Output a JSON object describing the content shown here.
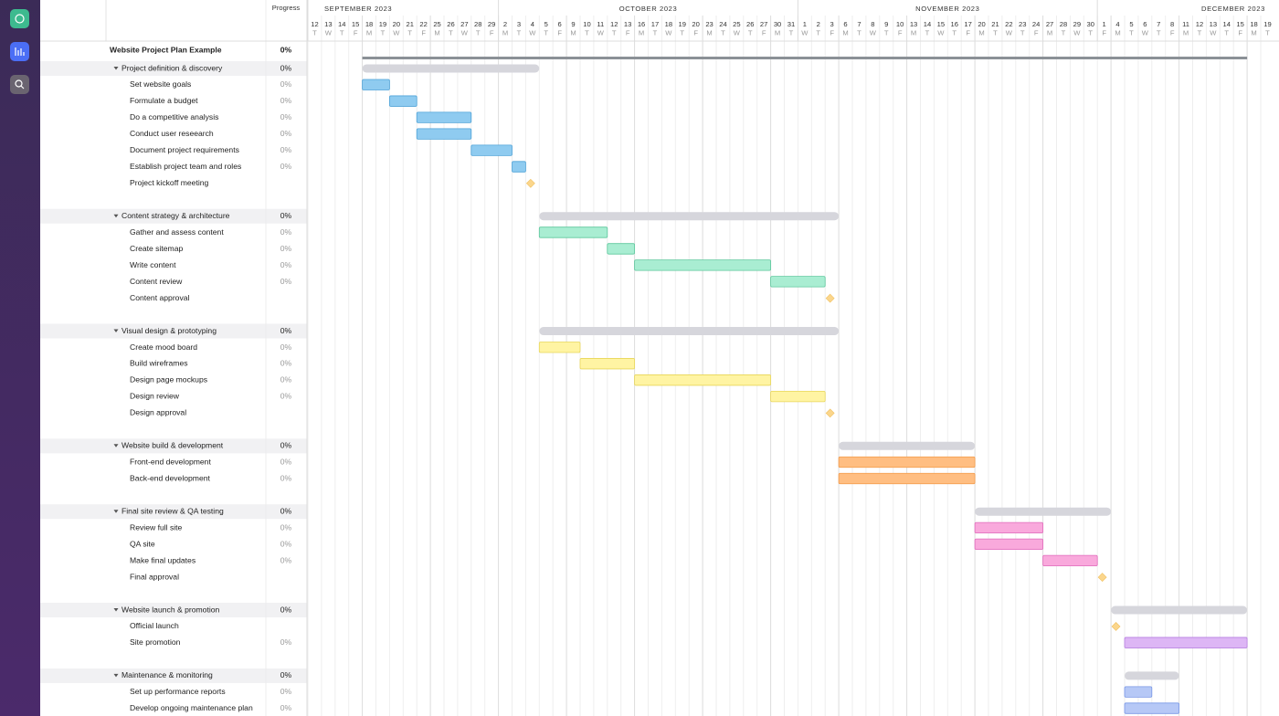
{
  "header": {
    "progress": "Progress"
  },
  "timeline": {
    "months": [
      {
        "label": "SEPTEMBER 2023",
        "days": [
          [
            12,
            "T"
          ],
          [
            13,
            "W"
          ],
          [
            14,
            "T"
          ],
          [
            15,
            "F"
          ],
          [
            18,
            "M"
          ],
          [
            19,
            "T"
          ],
          [
            20,
            "W"
          ],
          [
            21,
            "T"
          ],
          [
            22,
            "F"
          ],
          [
            25,
            "M"
          ],
          [
            26,
            "T"
          ],
          [
            27,
            "W"
          ],
          [
            28,
            "T"
          ],
          [
            29,
            "F"
          ]
        ]
      },
      {
        "label": "OCTOBER 2023",
        "days": [
          [
            2,
            "M"
          ],
          [
            3,
            "T"
          ],
          [
            4,
            "W"
          ],
          [
            5,
            "T"
          ],
          [
            6,
            "F"
          ],
          [
            9,
            "M"
          ],
          [
            10,
            "T"
          ],
          [
            11,
            "W"
          ],
          [
            12,
            "T"
          ],
          [
            13,
            "F"
          ],
          [
            16,
            "M"
          ],
          [
            17,
            "T"
          ],
          [
            18,
            "W"
          ],
          [
            19,
            "T"
          ],
          [
            20,
            "F"
          ],
          [
            23,
            "M"
          ],
          [
            24,
            "T"
          ],
          [
            25,
            "W"
          ],
          [
            26,
            "T"
          ],
          [
            27,
            "F"
          ],
          [
            30,
            "M"
          ],
          [
            31,
            "T"
          ]
        ]
      },
      {
        "label": "NOVEMBER 2023",
        "days": [
          [
            1,
            "W"
          ],
          [
            2,
            "T"
          ],
          [
            3,
            "F"
          ],
          [
            6,
            "M"
          ],
          [
            7,
            "T"
          ],
          [
            8,
            "W"
          ],
          [
            9,
            "T"
          ],
          [
            10,
            "F"
          ],
          [
            13,
            "M"
          ],
          [
            14,
            "T"
          ],
          [
            15,
            "W"
          ],
          [
            16,
            "T"
          ],
          [
            17,
            "F"
          ],
          [
            20,
            "M"
          ],
          [
            21,
            "T"
          ],
          [
            22,
            "W"
          ],
          [
            23,
            "T"
          ],
          [
            24,
            "F"
          ],
          [
            27,
            "M"
          ],
          [
            28,
            "T"
          ],
          [
            29,
            "W"
          ],
          [
            30,
            "T"
          ]
        ]
      },
      {
        "label": "DECEMBER 2023",
        "days": [
          [
            1,
            "F"
          ],
          [
            4,
            "M"
          ],
          [
            5,
            "T"
          ],
          [
            6,
            "W"
          ],
          [
            7,
            "T"
          ],
          [
            8,
            "F"
          ],
          [
            11,
            "M"
          ],
          [
            12,
            "T"
          ],
          [
            13,
            "W"
          ],
          [
            14,
            "T"
          ],
          [
            15,
            "F"
          ],
          [
            18,
            "M"
          ],
          [
            19,
            "T"
          ]
        ]
      }
    ]
  },
  "project": {
    "name": "Website Project Plan Example",
    "progress": "0%",
    "start": "2023-09-18",
    "end": "2023-12-15",
    "color": "#8b9096"
  },
  "groups": [
    {
      "name": "Project definition & discovery",
      "progress": "0%",
      "start": "2023-09-18",
      "end": "2023-10-04",
      "color": "#8fcbf0",
      "border": "#4fa3d8",
      "tasks": [
        {
          "name": "Set website goals",
          "progress": "0%",
          "start": "2023-09-18",
          "end": "2023-09-19"
        },
        {
          "name": "Formulate a budget",
          "progress": "0%",
          "start": "2023-09-20",
          "end": "2023-09-21"
        },
        {
          "name": "Do a competitive analysis",
          "progress": "0%",
          "start": "2023-09-22",
          "end": "2023-09-27"
        },
        {
          "name": "Conduct user reseearch",
          "progress": "0%",
          "start": "2023-09-22",
          "end": "2023-09-27"
        },
        {
          "name": "Document project requirements",
          "progress": "0%",
          "start": "2023-09-28",
          "end": "2023-10-02"
        },
        {
          "name": "Establish project team and roles",
          "progress": "0%",
          "start": "2023-10-03",
          "end": "2023-10-03"
        },
        {
          "name": "Project kickoff meeting",
          "date": "2023-10-04"
        }
      ]
    },
    {
      "name": "Content strategy & architecture",
      "progress": "0%",
      "start": "2023-10-05",
      "end": "2023-11-03",
      "color": "#a9edd2",
      "border": "#5cc79c",
      "tasks": [
        {
          "name": "Gather and assess content",
          "progress": "0%",
          "start": "2023-10-05",
          "end": "2023-10-11"
        },
        {
          "name": "Create sitemap",
          "progress": "0%",
          "start": "2023-10-12",
          "end": "2023-10-13"
        },
        {
          "name": "Write content",
          "progress": "0%",
          "start": "2023-10-16",
          "end": "2023-10-27"
        },
        {
          "name": "Content review",
          "progress": "0%",
          "start": "2023-10-30",
          "end": "2023-11-02"
        },
        {
          "name": "Content approval",
          "date": "2023-11-03"
        }
      ]
    },
    {
      "name": "Visual design & prototyping",
      "progress": "0%",
      "start": "2023-10-05",
      "end": "2023-11-03",
      "color": "#fff4a3",
      "border": "#e8d65a",
      "tasks": [
        {
          "name": "Create mood board",
          "progress": "0%",
          "start": "2023-10-05",
          "end": "2023-10-09"
        },
        {
          "name": "Build wireframes",
          "progress": "0%",
          "start": "2023-10-10",
          "end": "2023-10-13"
        },
        {
          "name": "Design page mockups",
          "progress": "0%",
          "start": "2023-10-16",
          "end": "2023-10-27"
        },
        {
          "name": "Design review",
          "progress": "0%",
          "start": "2023-10-30",
          "end": "2023-11-02"
        },
        {
          "name": "Design approval",
          "date": "2023-11-03"
        }
      ]
    },
    {
      "name": "Website build & development",
      "progress": "0%",
      "start": "2023-11-06",
      "end": "2023-11-17",
      "color": "#ffbe82",
      "border": "#f29a4a",
      "tasks": [
        {
          "name": "Front-end development",
          "progress": "0%",
          "start": "2023-11-06",
          "end": "2023-11-17"
        },
        {
          "name": "Back-end development",
          "progress": "0%",
          "start": "2023-11-06",
          "end": "2023-11-17"
        }
      ]
    },
    {
      "name": "Final site review & QA testing",
      "progress": "0%",
      "start": "2023-11-20",
      "end": "2023-12-01",
      "color": "#f9a9dc",
      "border": "#e06cbb",
      "tasks": [
        {
          "name": "Review full site",
          "progress": "0%",
          "start": "2023-11-20",
          "end": "2023-11-24"
        },
        {
          "name": "QA site",
          "progress": "0%",
          "start": "2023-11-20",
          "end": "2023-11-24"
        },
        {
          "name": "Make final updates",
          "progress": "0%",
          "start": "2023-11-27",
          "end": "2023-11-30"
        },
        {
          "name": "Final approval",
          "date": "2023-12-01"
        }
      ]
    },
    {
      "name": "Website launch & promotion",
      "progress": "0%",
      "start": "2023-12-04",
      "end": "2023-12-15",
      "color": "#ddb6f5",
      "border": "#b77fe0",
      "tasks": [
        {
          "name": "Official launch",
          "date": "2023-12-04"
        },
        {
          "name": "Site promotion",
          "progress": "0%",
          "start": "2023-12-05",
          "end": "2023-12-15"
        }
      ]
    },
    {
      "name": "Maintenance & monitoring",
      "progress": "0%",
      "start": "2023-12-05",
      "end": "2023-12-08",
      "color": "#b6c8f6",
      "border": "#7896e6",
      "tasks": [
        {
          "name": "Set up performance reports",
          "progress": "0%",
          "start": "2023-12-05",
          "end": "2023-12-06"
        },
        {
          "name": "Develop ongoing maintenance plan",
          "progress": "0%",
          "start": "2023-12-05",
          "end": "2023-12-08"
        }
      ]
    }
  ]
}
